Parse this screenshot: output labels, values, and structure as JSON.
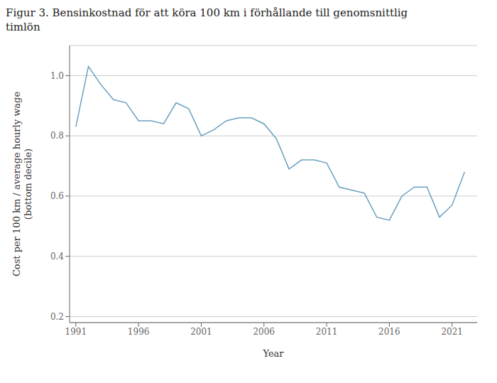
{
  "chart_data": {
    "type": "line",
    "title": [
      "Figur 3. Bensinkostnad för att köra 100 km i förhållande till genomsnittlig",
      "timlön"
    ],
    "xlabel": "Year",
    "ylabel": [
      "Cost per 100 km / average hourly wage",
      "(bottom decile)"
    ],
    "x": [
      1991,
      1992,
      1993,
      1994,
      1995,
      1996,
      1997,
      1998,
      1999,
      2000,
      2001,
      2002,
      2003,
      2004,
      2005,
      2006,
      2007,
      2008,
      2009,
      2010,
      2011,
      2012,
      2013,
      2014,
      2015,
      2016,
      2017,
      2018,
      2019,
      2020,
      2021,
      2022
    ],
    "values": [
      0.83,
      1.03,
      0.97,
      0.92,
      0.91,
      0.85,
      0.85,
      0.84,
      0.91,
      0.89,
      0.8,
      0.82,
      0.85,
      0.86,
      0.86,
      0.84,
      0.79,
      0.69,
      0.72,
      0.72,
      0.71,
      0.63,
      0.62,
      0.61,
      0.53,
      0.52,
      0.6,
      0.63,
      0.63,
      0.53,
      0.57,
      0.68
    ],
    "color": "#6a9fc0",
    "xlim": [
      1990.5,
      2023.0
    ],
    "ylim": [
      0.18,
      1.1
    ],
    "xticks": [
      1991,
      1996,
      2001,
      2006,
      2011,
      2016,
      2021
    ],
    "yticks": [
      0.2,
      0.4,
      0.6,
      0.8,
      {
        "value": 1,
        "label": "1.0"
      }
    ],
    "grid": "y"
  }
}
